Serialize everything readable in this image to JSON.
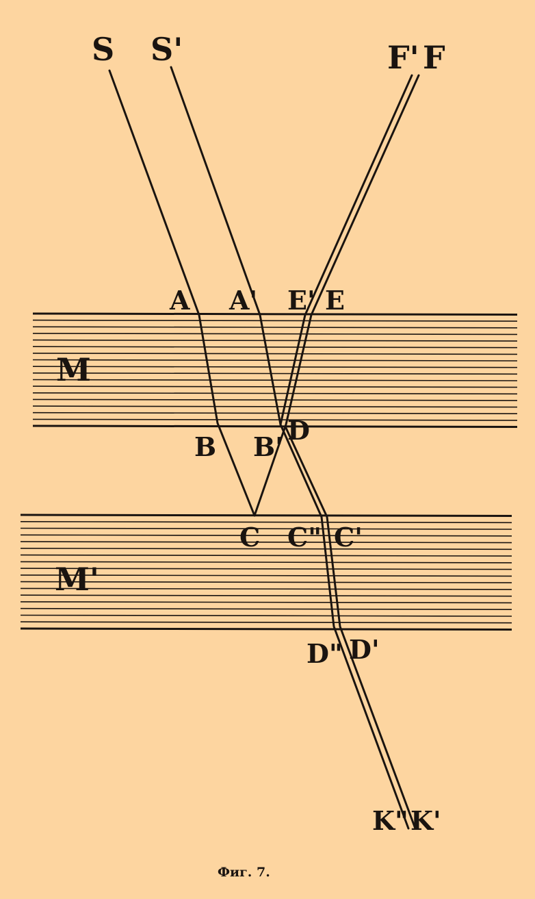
{
  "labels": {
    "S": "S",
    "S_prime": "S'",
    "F_prime": "F'",
    "F": "F",
    "A": "A",
    "A_prime": "A'",
    "E_prime": "E'",
    "E": "E",
    "M": "M",
    "B": "B",
    "B_prime": "B'",
    "D_top": "D",
    "C": "C",
    "C_dprime": "C\"",
    "C_prime": "C'",
    "M_prime": "M'",
    "D_dprime": "D\"",
    "D_prime": "D'",
    "K_dprime": "K\"",
    "K_prime": "K'"
  },
  "caption": "Фиг. 7."
}
